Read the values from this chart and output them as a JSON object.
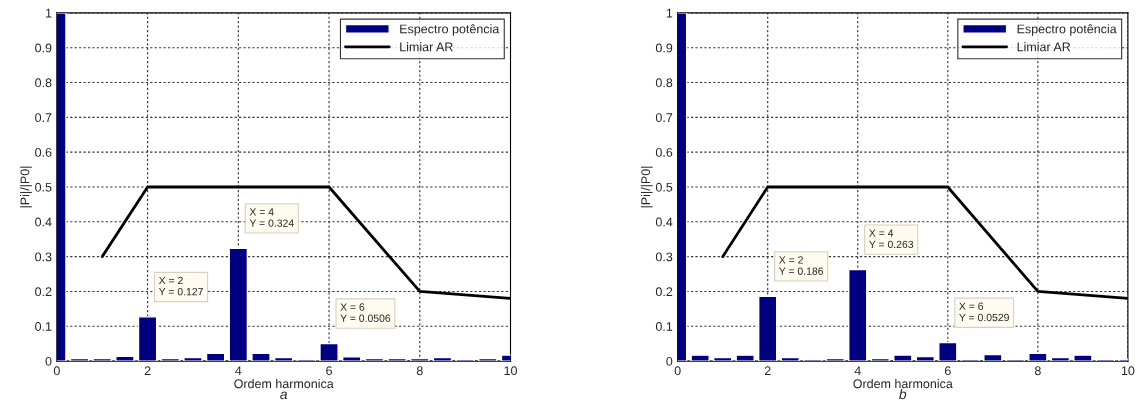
{
  "chart_data": [
    {
      "type": "bar",
      "xlabel": "Ordem harmonica",
      "ylabel": "|Pi|/|P0|",
      "xlim": [
        0,
        10
      ],
      "ylim": [
        0,
        1
      ],
      "xticks": [
        0,
        2,
        4,
        6,
        8,
        10
      ],
      "yticks": [
        0,
        0.1,
        0.2,
        0.3,
        0.4,
        0.5,
        0.6,
        0.7,
        0.8,
        0.9,
        1
      ],
      "grid": true,
      "legend": "top right",
      "series": [
        {
          "name": "Espectro potência",
          "color": "#000080",
          "x": [
            0,
            0.5,
            1,
            1.5,
            2,
            2.5,
            3,
            3.5,
            4,
            4.5,
            5,
            5.5,
            6,
            6.5,
            7,
            7.5,
            8,
            8.5,
            9,
            9.5,
            10
          ],
          "values": [
            1,
            0.007,
            0.007,
            0.014,
            0.127,
            0.007,
            0.01,
            0.022,
            0.324,
            0.022,
            0.01,
            0.005,
            0.0506,
            0.012,
            0.007,
            0.007,
            0.007,
            0.01,
            0.005,
            0.007,
            0.017
          ]
        },
        {
          "name": "Limiar AR",
          "type": "line",
          "color": "#000000",
          "x": [
            1,
            2,
            6,
            8,
            10
          ],
          "values": [
            0.3,
            0.5,
            0.5,
            0.2,
            0.18
          ]
        }
      ],
      "annotations": [
        {
          "text": "X = 2\nY = 0.127",
          "x": 2,
          "y": 0.127
        },
        {
          "text": "X = 4\nY = 0.324",
          "x": 4,
          "y": 0.324
        },
        {
          "text": "X = 6\nY = 0.0506",
          "x": 6,
          "y": 0.0506
        },
        "a"
      ]
    },
    {
      "type": "bar",
      "xlabel": "Ordem harmonica",
      "ylabel": "|Pi|/|P0|",
      "xlim": [
        0,
        10
      ],
      "ylim": [
        0,
        1
      ],
      "xticks": [
        0,
        2,
        4,
        6,
        8,
        10
      ],
      "yticks": [
        0,
        0.1,
        0.2,
        0.3,
        0.4,
        0.5,
        0.6,
        0.7,
        0.8,
        0.9,
        1
      ],
      "grid": true,
      "legend": "top right",
      "series": [
        {
          "name": "Espectro potência",
          "color": "#000080",
          "x": [
            0,
            0.5,
            1,
            1.5,
            2,
            2.5,
            3,
            3.5,
            4,
            4.5,
            5,
            5.5,
            6,
            6.5,
            7,
            7.5,
            8,
            8.5,
            9,
            9.5,
            10
          ],
          "values": [
            1,
            0.017,
            0.01,
            0.017,
            0.186,
            0.01,
            0.005,
            0.007,
            0.263,
            0.007,
            0.017,
            0.013,
            0.0529,
            0.005,
            0.019,
            0.005,
            0.022,
            0.01,
            0.017,
            0.005,
            0.005
          ]
        },
        {
          "name": "Limiar AR",
          "type": "line",
          "color": "#000000",
          "x": [
            1,
            2,
            6,
            8,
            10
          ],
          "values": [
            0.3,
            0.5,
            0.5,
            0.2,
            0.18
          ]
        }
      ],
      "annotations": [
        {
          "text": "X = 2\nY = 0.186",
          "x": 2,
          "y": 0.186
        },
        {
          "text": "X = 4\nY = 0.263",
          "x": 4,
          "y": 0.263
        },
        {
          "text": "X = 6\nY = 0.0529",
          "x": 6,
          "y": 0.0529
        },
        "b"
      ]
    }
  ]
}
